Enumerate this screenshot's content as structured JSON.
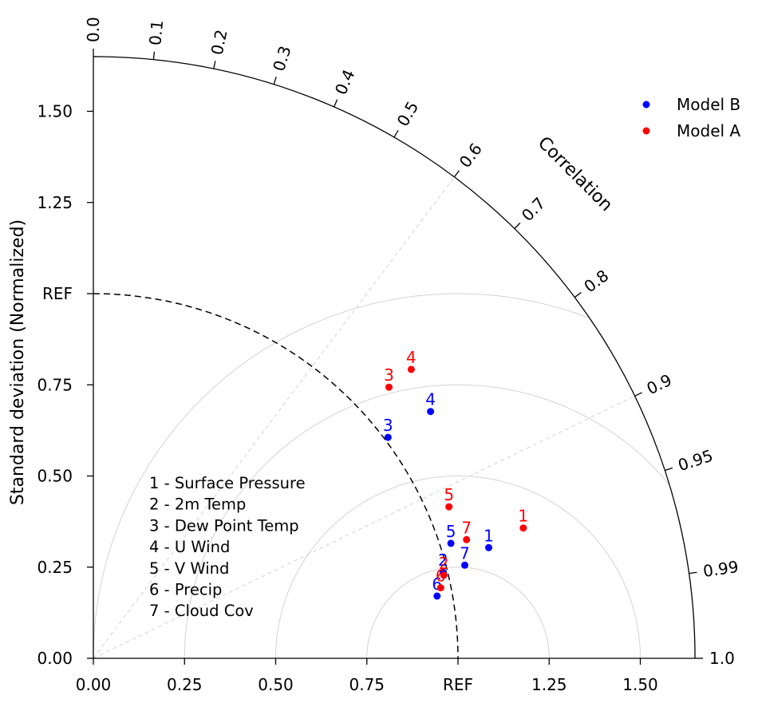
{
  "chart_data": {
    "type": "scatter",
    "subtype": "taylor-diagram",
    "ylabel": "Standard deviation (Normalized)",
    "arc_label": "Correlation",
    "ref_label": "REF",
    "ref_std": 1.0,
    "std_max": 1.65,
    "std_ticks": [
      {
        "value": 0.0,
        "label": "0.00"
      },
      {
        "value": 0.25,
        "label": "0.25"
      },
      {
        "value": 0.5,
        "label": "0.50"
      },
      {
        "value": 0.75,
        "label": "0.75"
      },
      {
        "value": 1.0,
        "label": "REF"
      },
      {
        "value": 1.25,
        "label": "1.25"
      },
      {
        "value": 1.5,
        "label": "1.50"
      }
    ],
    "corr_ticks": [
      {
        "value": 0.0,
        "label": "0.0"
      },
      {
        "value": 0.1,
        "label": "0.1"
      },
      {
        "value": 0.2,
        "label": "0.2"
      },
      {
        "value": 0.3,
        "label": "0.3"
      },
      {
        "value": 0.4,
        "label": "0.4"
      },
      {
        "value": 0.5,
        "label": "0.5"
      },
      {
        "value": 0.6,
        "label": "0.6"
      },
      {
        "value": 0.7,
        "label": "0.7"
      },
      {
        "value": 0.8,
        "label": "0.8"
      },
      {
        "value": 0.9,
        "label": "0.9"
      },
      {
        "value": 0.95,
        "label": "0.95"
      },
      {
        "value": 0.99,
        "label": "0.99"
      },
      {
        "value": 1.0,
        "label": "1.0"
      }
    ],
    "corr_guides": [
      0.6,
      0.9
    ],
    "rms_circles": [
      0.25,
      0.5,
      0.75,
      1.0
    ],
    "series": [
      {
        "name": "Model B",
        "color": "#0000ff",
        "points": [
          {
            "label": "1",
            "std": 1.126,
            "corr": 0.963
          },
          {
            "label": "2",
            "std": 0.988,
            "corr": 0.971
          },
          {
            "label": "3",
            "std": 1.01,
            "corr": 0.8
          },
          {
            "label": "4",
            "std": 1.146,
            "corr": 0.807
          },
          {
            "label": "5",
            "std": 1.03,
            "corr": 0.952
          },
          {
            "label": "6",
            "std": 0.958,
            "corr": 0.984
          },
          {
            "label": "7",
            "std": 1.05,
            "corr": 0.97
          }
        ]
      },
      {
        "name": "Model A",
        "color": "#ff0000",
        "points": [
          {
            "label": "1",
            "std": 1.232,
            "corr": 0.957
          },
          {
            "label": "2",
            "std": 0.988,
            "corr": 0.973
          },
          {
            "label": "3",
            "std": 1.1,
            "corr": 0.737
          },
          {
            "label": "4",
            "std": 1.178,
            "corr": 0.74
          },
          {
            "label": "5",
            "std": 1.06,
            "corr": 0.92
          },
          {
            "label": "6",
            "std": 0.972,
            "corr": 0.98
          },
          {
            "label": "7",
            "std": 1.074,
            "corr": 0.953
          }
        ]
      }
    ],
    "legend": {
      "placement": "top-right",
      "entries": [
        "Model B",
        "Model A"
      ]
    },
    "variable_key": [
      "1 - Surface Pressure",
      "2 - 2m Temp",
      "3 - Dew Point Temp",
      "4 - U Wind",
      "5 - V Wind",
      "6 - Precip",
      "7 - Cloud Cov"
    ],
    "colors": {
      "axis": "#000000",
      "grid": "#d3d3d3",
      "ref_arc": "#000000"
    }
  }
}
